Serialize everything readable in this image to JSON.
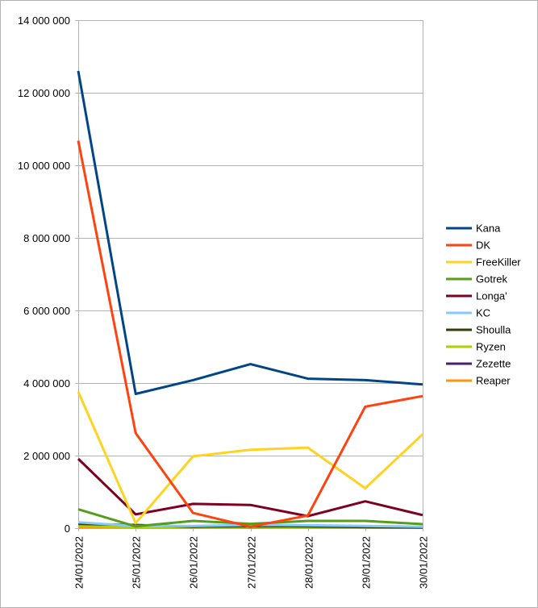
{
  "chart_data": {
    "type": "line",
    "title": "",
    "xlabel": "",
    "ylabel": "",
    "categories": [
      "24/01/2022",
      "25/01/2022",
      "26/01/2022",
      "27/01/2022",
      "28/01/2022",
      "29/01/2022",
      "30/01/2022"
    ],
    "ylim": [
      0,
      14000000
    ],
    "y_ticks": [
      0,
      2000000,
      4000000,
      6000000,
      8000000,
      10000000,
      12000000,
      14000000
    ],
    "y_tick_labels": [
      "0",
      "2 000 000",
      "4 000 000",
      "6 000 000",
      "8 000 000",
      "10 000 000",
      "12 000 000",
      "14 000 000"
    ],
    "grid": true,
    "legend_position": "right",
    "series": [
      {
        "name": "Kana",
        "color": "#004586",
        "values": [
          12600000,
          3700000,
          4080000,
          4520000,
          4120000,
          4080000,
          3960000
        ]
      },
      {
        "name": "DK",
        "color": "#ff420e",
        "values": [
          10680000,
          2620000,
          420000,
          40000,
          350000,
          3350000,
          3640000
        ]
      },
      {
        "name": "FreeKiller",
        "color": "#ffd320",
        "values": [
          3760000,
          140000,
          1980000,
          2160000,
          2220000,
          1100000,
          2590000
        ]
      },
      {
        "name": "Gotrek",
        "color": "#579d1c",
        "values": [
          520000,
          50000,
          200000,
          120000,
          200000,
          200000,
          110000
        ]
      },
      {
        "name": "Longa'",
        "color": "#7e0021",
        "values": [
          1910000,
          380000,
          670000,
          640000,
          330000,
          740000,
          360000
        ]
      },
      {
        "name": "KC",
        "color": "#83caff",
        "values": [
          160000,
          60000,
          60000,
          90000,
          80000,
          60000,
          40000
        ]
      },
      {
        "name": "Shoulla",
        "color": "#314004",
        "values": [
          120000,
          90000,
          40000,
          60000,
          50000,
          30000,
          20000
        ]
      },
      {
        "name": "Ryzen",
        "color": "#aecf00",
        "values": [
          60000,
          30000,
          30000,
          40000,
          30000,
          20000,
          20000
        ]
      },
      {
        "name": "Zezette",
        "color": "#4b1f6f",
        "values": [
          100000,
          50000,
          40000,
          30000,
          40000,
          30000,
          20000
        ]
      },
      {
        "name": "Reaper",
        "color": "#ff950e",
        "values": [
          30000,
          20000,
          20000,
          20000,
          20000,
          10000,
          10000
        ]
      }
    ]
  }
}
